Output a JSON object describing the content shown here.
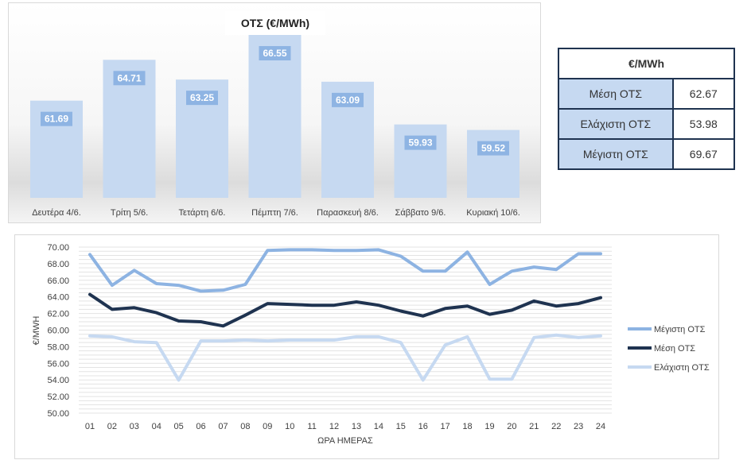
{
  "bar_chart": {
    "title": "ΟΤΣ (€/MWh)"
  },
  "stats_table": {
    "header": "€/MWh",
    "rows": [
      {
        "label": "Μέση ΟΤΣ",
        "value": "62.67"
      },
      {
        "label": "Ελάχιστη ΟΤΣ",
        "value": "53.98"
      },
      {
        "label": "Μέγιστη ΟΤΣ",
        "value": "69.67"
      }
    ]
  },
  "colors": {
    "bar": "#c6d9f1",
    "bar_label_bg": "#8eb4e3",
    "max_line": "#8db3e2",
    "avg_line": "#1f3350",
    "min_line": "#c6d9f1"
  },
  "chart_data": [
    {
      "type": "bar",
      "title": "ΟΤΣ (€/MWh)",
      "categories": [
        "Δευτέρα 4/6.",
        "Τρίτη 5/6.",
        "Τετάρτη 6/6.",
        "Πέμπτη 7/6.",
        "Παρασκευή 8/6.",
        "Σάββατο 9/6.",
        "Κυριακή 10/6."
      ],
      "values": [
        61.69,
        64.71,
        63.25,
        66.55,
        63.09,
        59.93,
        59.52
      ],
      "data_labels": [
        "61.69",
        "64.71",
        "63.25",
        "66.55",
        "63.09",
        "59.93",
        "59.52"
      ],
      "ylim": [
        54.5,
        66.55
      ]
    },
    {
      "type": "line",
      "title": "",
      "xlabel": "ΩΡΑ ΗΜΕΡΑΣ",
      "ylabel": "€/MWH",
      "x": [
        "01",
        "02",
        "03",
        "04",
        "05",
        "06",
        "07",
        "08",
        "09",
        "10",
        "11",
        "12",
        "13",
        "14",
        "15",
        "16",
        "17",
        "18",
        "19",
        "20",
        "21",
        "22",
        "23",
        "24"
      ],
      "ylim": [
        50,
        70
      ],
      "yticks": [
        "50.00",
        "52.00",
        "54.00",
        "56.00",
        "58.00",
        "60.00",
        "62.00",
        "64.00",
        "66.00",
        "68.00",
        "70.00"
      ],
      "grid": true,
      "legend": "right",
      "series": [
        {
          "name": "Μέγιστη ΟΤΣ",
          "color": "#8db3e2",
          "values": [
            69.1,
            65.4,
            67.2,
            65.6,
            65.4,
            64.7,
            64.8,
            65.5,
            69.6,
            69.67,
            69.67,
            69.6,
            69.6,
            69.67,
            68.9,
            67.1,
            67.1,
            69.4,
            65.5,
            67.1,
            67.6,
            67.3,
            69.2,
            69.2
          ]
        },
        {
          "name": "Μέση ΟΤΣ",
          "color": "#1f3350",
          "values": [
            64.3,
            62.5,
            62.7,
            62.1,
            61.1,
            61.0,
            60.5,
            61.8,
            63.2,
            63.1,
            63.0,
            63.0,
            63.4,
            63.0,
            62.3,
            61.7,
            62.6,
            62.9,
            61.9,
            62.4,
            63.5,
            62.9,
            63.2,
            63.9
          ]
        },
        {
          "name": "Ελάχιστη ΟΤΣ",
          "color": "#c6d9f1",
          "values": [
            59.3,
            59.2,
            58.6,
            58.5,
            53.98,
            58.7,
            58.7,
            58.8,
            58.7,
            58.8,
            58.8,
            58.8,
            59.2,
            59.2,
            58.5,
            53.98,
            58.2,
            59.2,
            54.1,
            54.1,
            59.1,
            59.4,
            59.1,
            59.3
          ]
        }
      ]
    }
  ]
}
